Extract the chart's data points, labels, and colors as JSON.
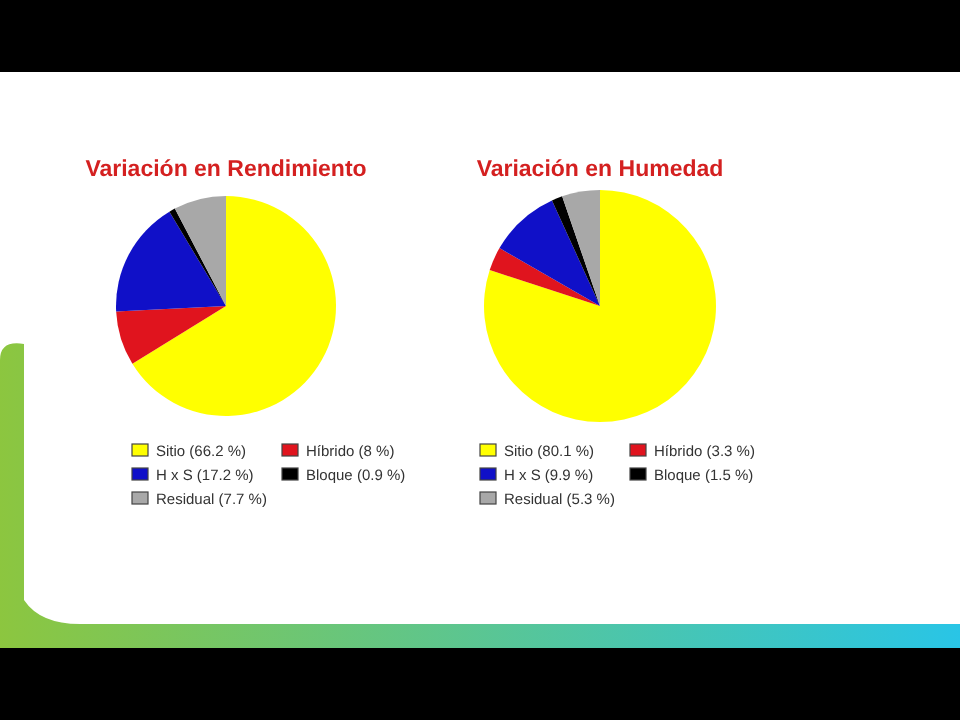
{
  "chart_data": [
    {
      "type": "pie",
      "title": "Variación en Rendimiento",
      "categories": [
        "Sitio",
        "Híbrido",
        "H x S",
        "Bloque",
        "Residual"
      ],
      "values": [
        66.2,
        8,
        17.2,
        0.9,
        7.7
      ],
      "value_labels": [
        "(66.2 %)",
        "(8 %)",
        "(17.2 %)",
        "(0.9 %)",
        "(7.7 %)"
      ],
      "colors": [
        "#ffff00",
        "#e0141e",
        "#1010c8",
        "#000000",
        "#a8a8a8"
      ],
      "legend": "bottom"
    },
    {
      "type": "pie",
      "title": "Variación en Humedad",
      "categories": [
        "Sitio",
        "Híbrido",
        "H x S",
        "Bloque",
        "Residual"
      ],
      "values": [
        80.1,
        3.3,
        9.9,
        1.5,
        5.3
      ],
      "value_labels": [
        "(80.1 %)",
        "(3.3 %)",
        "(9.9 %)",
        "(1.5 %)",
        "(5.3 %)"
      ],
      "colors": [
        "#ffff00",
        "#e0141e",
        "#1010c8",
        "#000000",
        "#a8a8a8"
      ],
      "legend": "bottom"
    }
  ]
}
